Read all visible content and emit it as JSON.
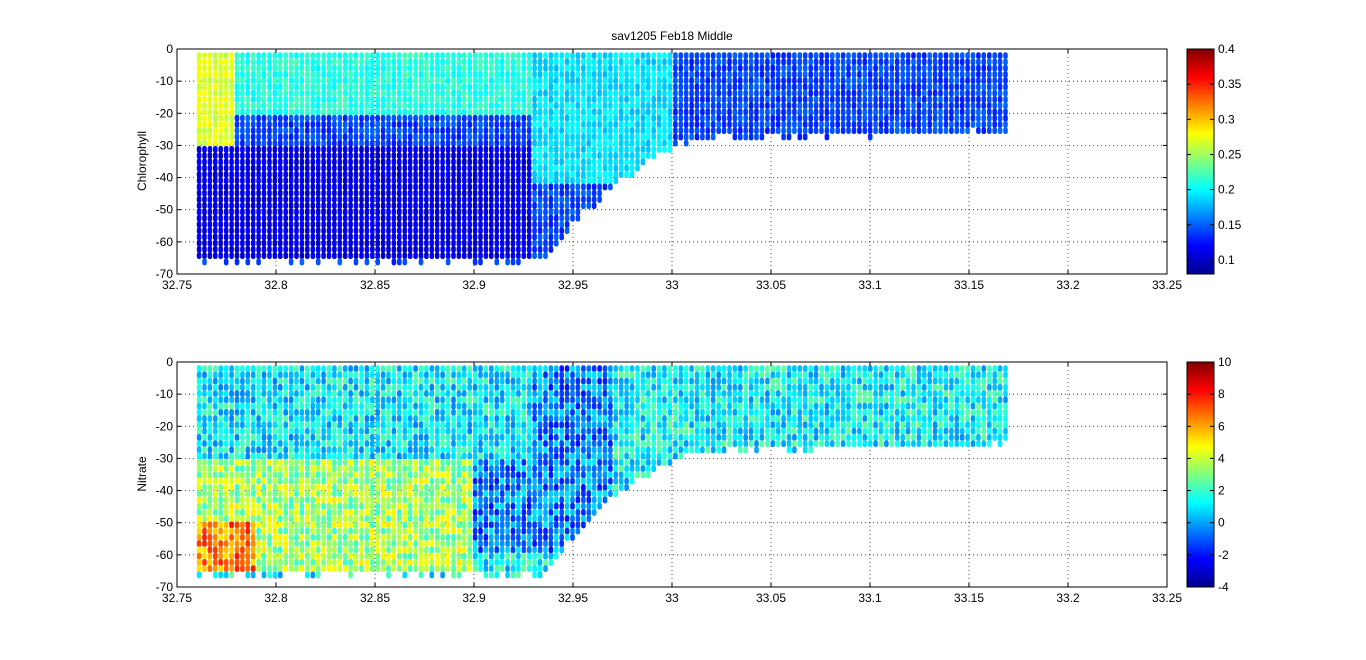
{
  "figure": {
    "title": "sav1205 Feb18 Middle",
    "colormap": "jet",
    "jet_colors": [
      "#00008f",
      "#0000ff",
      "#00ffff",
      "#ffff00",
      "#ff0000",
      "#800000"
    ]
  },
  "chart_data": [
    {
      "type": "heatmap",
      "title": "sav1205 Feb18 Middle",
      "xlabel": "",
      "ylabel": "Chlorophyll",
      "xlim": [
        32.75,
        33.25
      ],
      "ylim": [
        -70,
        0
      ],
      "x_ticks": [
        "32.75",
        "32.8",
        "32.85",
        "32.9",
        "32.95",
        "33",
        "33.05",
        "33.1",
        "33.15",
        "33.2",
        "33.25"
      ],
      "y_ticks": [
        "0",
        "-10",
        "-20",
        "-30",
        "-40",
        "-50",
        "-60",
        "-70"
      ],
      "grid": "on",
      "colorbar": {
        "range": [
          0.08,
          0.4
        ],
        "ticks": [
          "0.4",
          "0.35",
          "0.3",
          "0.25",
          "0.2",
          "0.15",
          "0.1"
        ]
      },
      "cast_x_range": [
        32.76,
        33.17
      ],
      "bottom_depth_profile": {
        "x": [
          32.76,
          32.93,
          32.935,
          32.95,
          32.97,
          32.99,
          33.01,
          33.05,
          33.17
        ],
        "depth": [
          -66,
          -66,
          -66,
          -55,
          -42,
          -34,
          -28,
          -27,
          -26
        ]
      },
      "value_zones": [
        {
          "x": [
            32.76,
            32.78
          ],
          "depth": [
            0,
            -30
          ],
          "value": 0.27
        },
        {
          "x": [
            32.78,
            32.93
          ],
          "depth": [
            0,
            -20
          ],
          "value": 0.21
        },
        {
          "x": [
            32.76,
            32.93
          ],
          "depth": [
            -30,
            -66
          ],
          "value": 0.11
        },
        {
          "x": [
            32.93,
            33.0
          ],
          "depth": [
            0,
            -42
          ],
          "value": 0.19
        },
        {
          "x": [
            33.0,
            33.17
          ],
          "depth": [
            0,
            -27
          ],
          "value": 0.14
        }
      ]
    },
    {
      "type": "heatmap",
      "xlabel": "",
      "ylabel": "Nitrate",
      "xlim": [
        32.75,
        33.25
      ],
      "ylim": [
        -70,
        0
      ],
      "x_ticks": [
        "32.75",
        "32.8",
        "32.85",
        "32.9",
        "32.95",
        "33",
        "33.05",
        "33.1",
        "33.15",
        "33.2",
        "33.25"
      ],
      "y_ticks": [
        "0",
        "-10",
        "-20",
        "-30",
        "-40",
        "-50",
        "-60",
        "-70"
      ],
      "grid": "on",
      "colorbar": {
        "range": [
          -4,
          10
        ],
        "ticks": [
          "10",
          "8",
          "6",
          "4",
          "2",
          "0",
          "-2",
          "-4"
        ]
      },
      "cast_x_range": [
        32.76,
        33.17
      ],
      "bottom_depth_profile": {
        "x": [
          32.76,
          32.93,
          32.935,
          32.95,
          32.97,
          32.99,
          33.01,
          33.05,
          33.17
        ],
        "depth": [
          -66,
          -66,
          -66,
          -55,
          -42,
          -34,
          -28,
          -27,
          -26
        ]
      },
      "value_zones": [
        {
          "x": [
            32.76,
            32.79
          ],
          "depth": [
            -50,
            -66
          ],
          "value": 6.5
        },
        {
          "x": [
            32.76,
            32.9
          ],
          "depth": [
            -30,
            -66
          ],
          "value": 3.5
        },
        {
          "x": [
            32.76,
            32.93
          ],
          "depth": [
            0,
            -30
          ],
          "value": 1.0
        },
        {
          "x": [
            32.9,
            32.97
          ],
          "depth": [
            0,
            -60
          ],
          "value": -0.5
        },
        {
          "x": [
            32.97,
            33.17
          ],
          "depth": [
            0,
            -27
          ],
          "value": 1.2
        }
      ]
    }
  ]
}
